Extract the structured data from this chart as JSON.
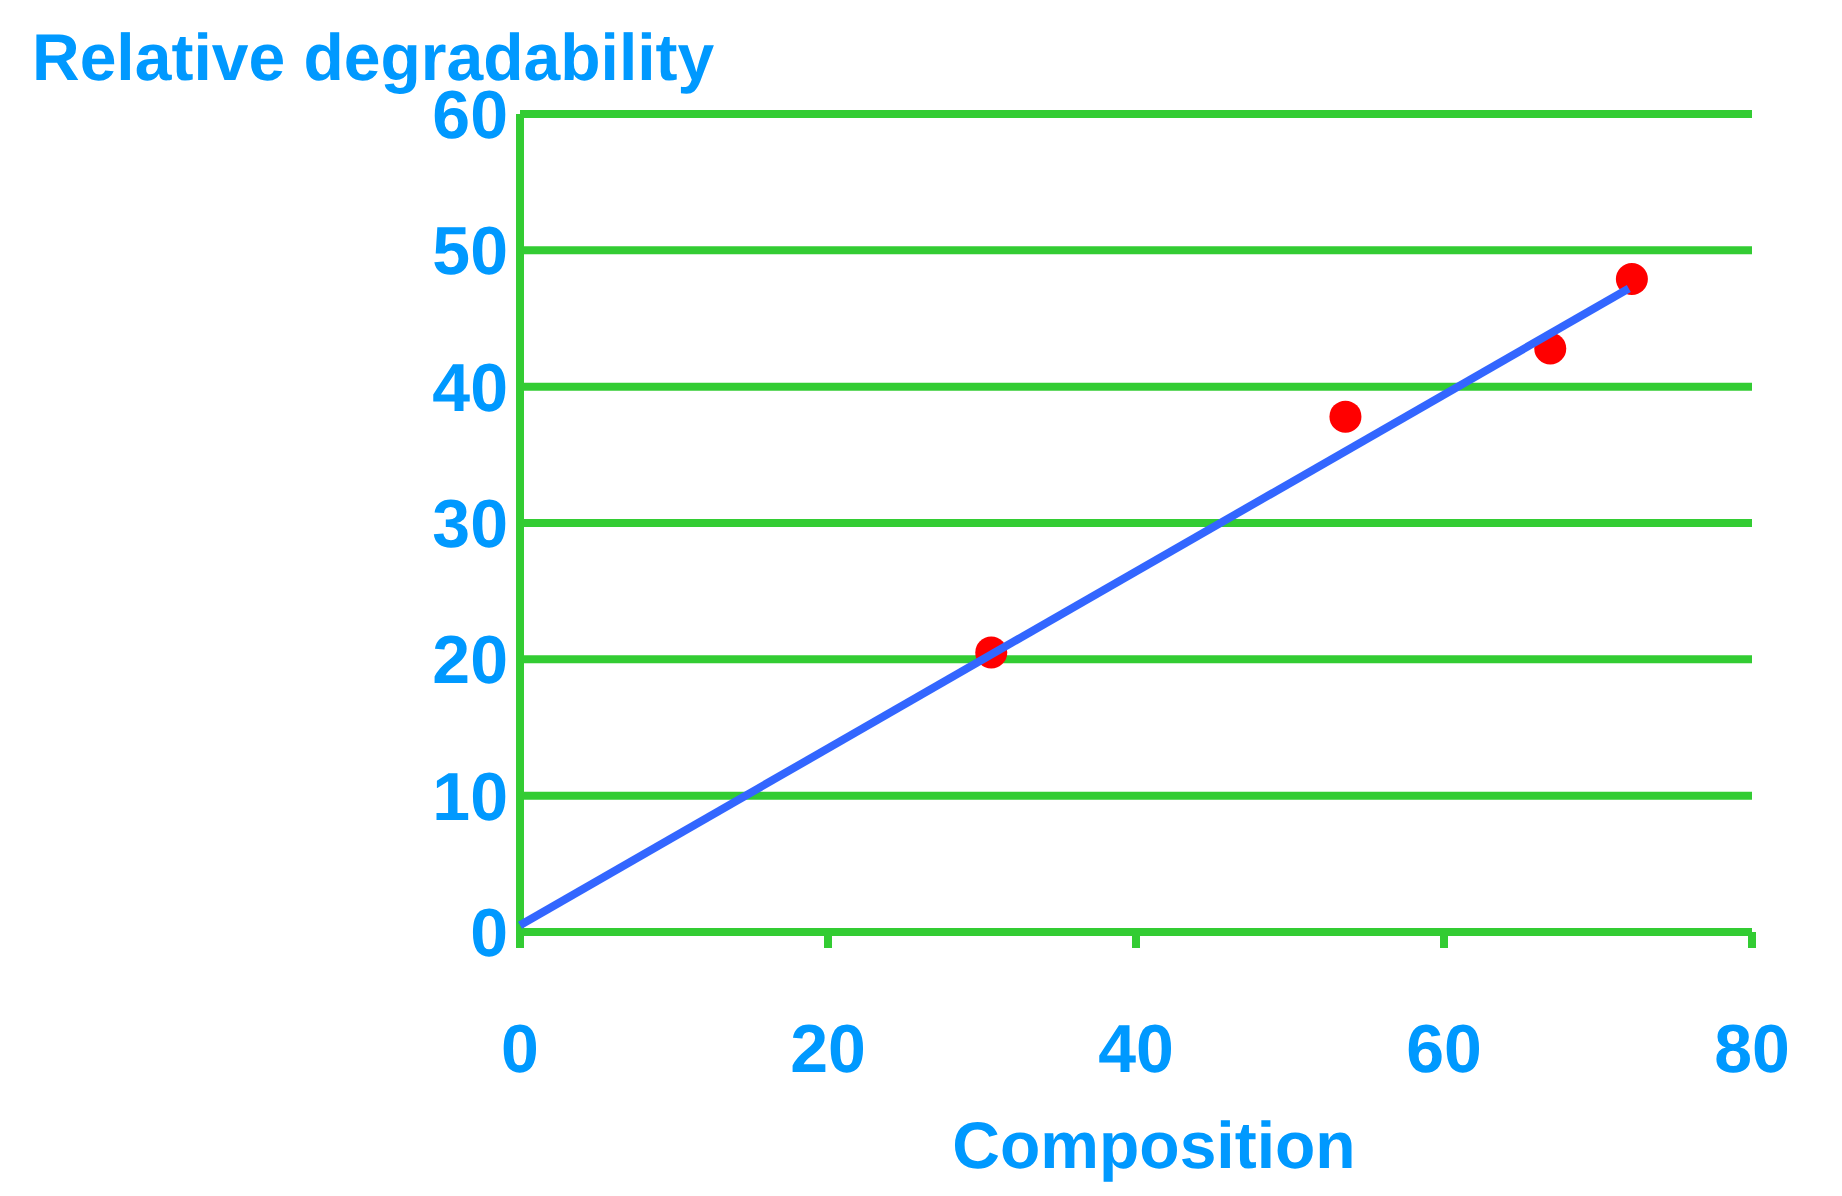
{
  "chart_data": {
    "type": "scatter",
    "xlabel": "Composition",
    "ylabel": "Relative degradability",
    "xlim": [
      0,
      80
    ],
    "xticks": [
      0,
      20,
      40,
      60,
      80
    ],
    "ylim": [
      0,
      60
    ],
    "yticks": [
      0,
      10,
      20,
      30,
      40,
      50,
      60
    ],
    "grid": "y",
    "series": [
      {
        "color": "#ff0000",
        "marker": "circle",
        "x": [
          30.6,
          53.6,
          66.9,
          72.2
        ],
        "values": [
          20.5,
          37.8,
          42.8,
          47.9
        ]
      },
      {
        "type": "line",
        "color": "#3366ff",
        "x": [
          0,
          72
        ],
        "values": [
          0.5,
          47.2
        ]
      }
    ]
  }
}
